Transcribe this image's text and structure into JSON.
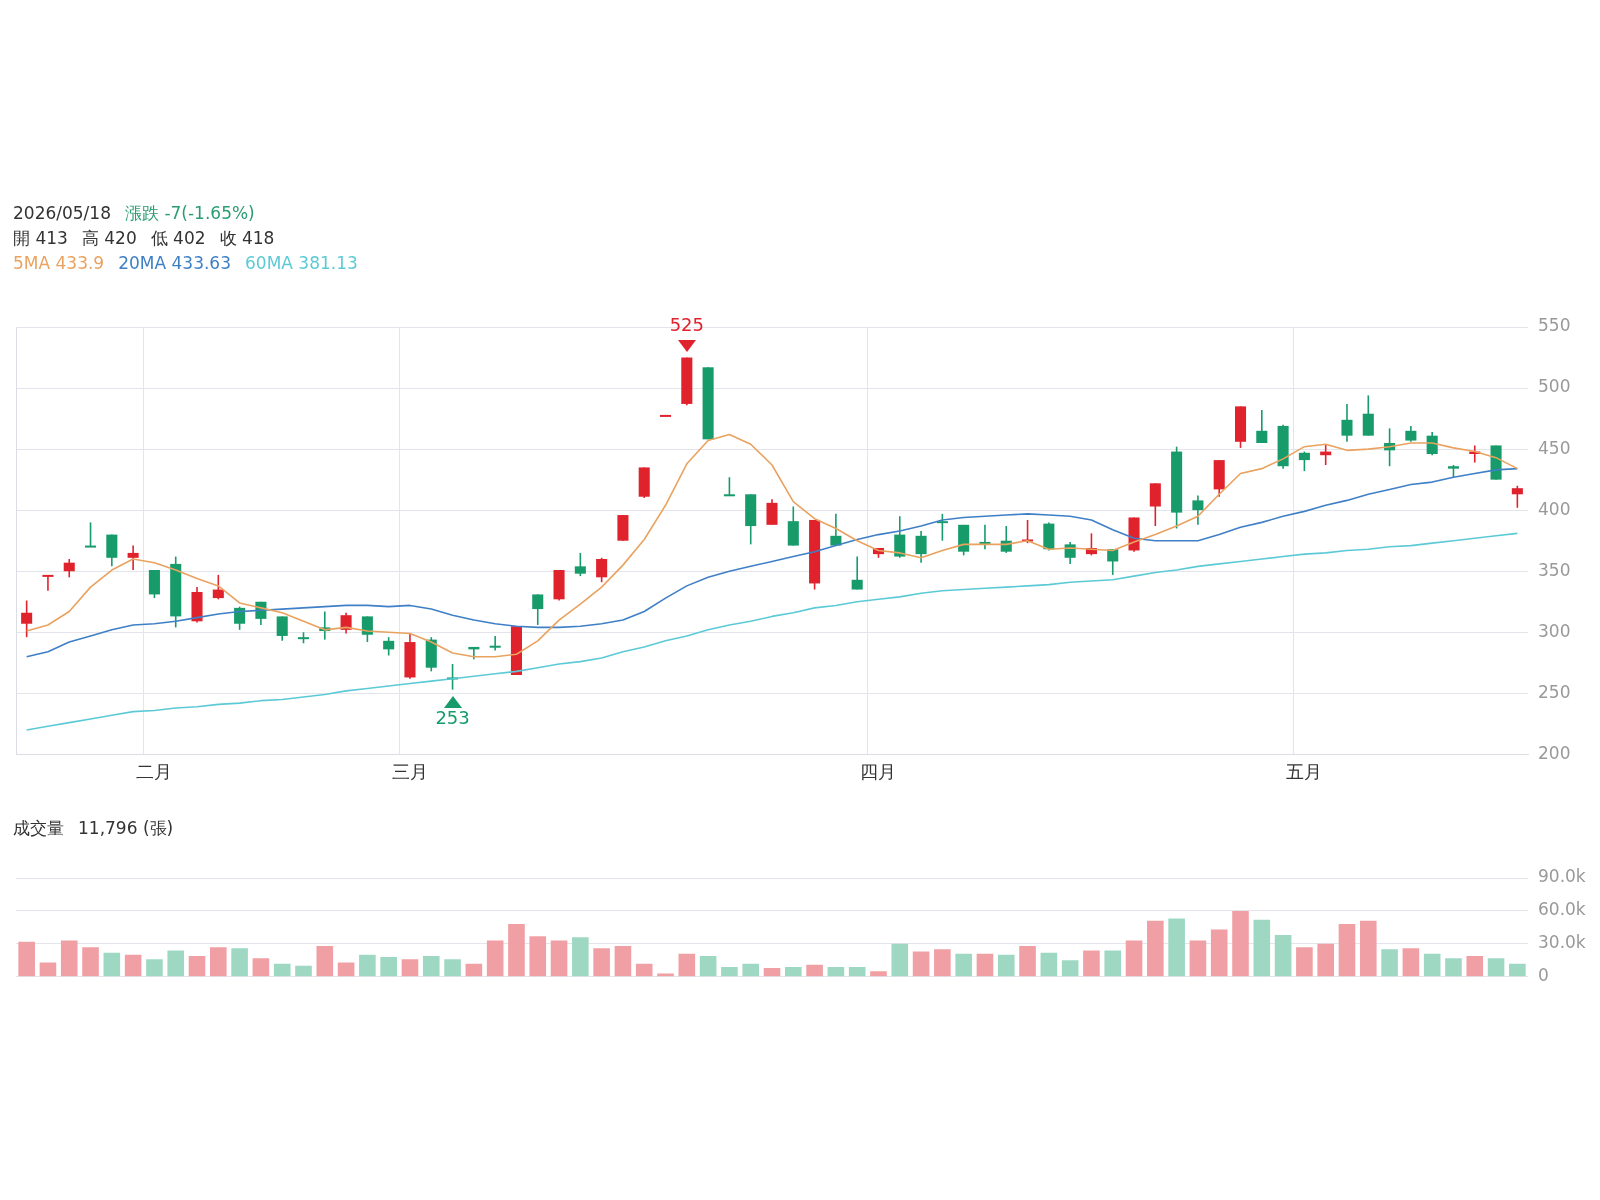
{
  "chart_data": [
    {
      "type": "candlestick",
      "annotations": [
        "2026/05/18",
        "漲跌 -7(-1.65%)",
        "開 413",
        "高 420",
        "低 402",
        "收 418",
        {
          "text": "525",
          "y": 525
        },
        {
          "text": "253",
          "y": 253
        }
      ],
      "categories": [
        null,
        null,
        null,
        null,
        null,
        null,
        "二月",
        null,
        null,
        null,
        null,
        null,
        null,
        null,
        null,
        null,
        null,
        null,
        "三月",
        null,
        null,
        null,
        null,
        null,
        null,
        null,
        null,
        null,
        null,
        null,
        null,
        null,
        null,
        null,
        null,
        null,
        null,
        null,
        null,
        null,
        "四月",
        null,
        null,
        null,
        null,
        null,
        null,
        null,
        null,
        null,
        null,
        null,
        null,
        null,
        null,
        null,
        null,
        null,
        null,
        null,
        "五月",
        null,
        null,
        null,
        null,
        null,
        null,
        null,
        null,
        null,
        null
      ],
      "ohlc": [
        [
          307,
          326,
          296,
          316
        ],
        [
          346,
          347,
          334,
          347
        ],
        [
          350,
          360,
          345,
          357
        ],
        [
          371,
          390,
          370,
          370
        ],
        [
          380,
          380,
          354,
          361
        ],
        [
          361,
          371,
          351,
          365
        ],
        [
          351,
          351,
          328,
          331
        ],
        [
          356,
          362,
          304,
          313
        ],
        [
          309,
          337,
          308,
          333
        ],
        [
          328,
          347,
          327,
          335
        ],
        [
          320,
          321,
          302,
          307
        ],
        [
          325,
          325,
          306,
          311
        ],
        [
          313,
          313,
          293,
          297
        ],
        [
          296,
          300,
          291,
          295
        ],
        [
          304,
          317,
          294,
          301
        ],
        [
          302,
          316,
          299,
          314
        ],
        [
          313,
          313,
          292,
          298
        ],
        [
          293,
          296,
          281,
          286
        ],
        [
          263,
          299,
          262,
          292
        ],
        [
          294,
          296,
          268,
          271
        ],
        [
          263,
          274,
          253,
          262
        ],
        [
          288,
          288,
          278,
          286
        ],
        [
          289,
          297,
          285,
          288
        ],
        [
          265,
          305,
          265,
          305
        ],
        [
          331,
          331,
          306,
          319
        ],
        [
          327,
          351,
          326,
          351
        ],
        [
          354,
          365,
          346,
          348
        ],
        [
          345,
          361,
          341,
          360
        ],
        [
          375,
          396,
          375,
          396
        ],
        [
          411,
          435,
          410,
          435
        ],
        [
          477,
          478,
          477,
          478
        ],
        [
          487,
          525,
          486,
          525
        ],
        [
          517,
          517,
          458,
          458
        ],
        [
          413,
          427,
          412,
          412
        ],
        [
          413,
          413,
          372,
          387
        ],
        [
          388,
          409,
          388,
          406
        ],
        [
          391,
          403,
          371,
          371
        ],
        [
          340,
          392,
          335,
          392
        ],
        [
          379,
          397,
          371,
          371
        ],
        [
          343,
          362,
          335,
          335
        ],
        [
          364,
          369,
          361,
          369
        ],
        [
          380,
          395,
          361,
          362
        ],
        [
          379,
          383,
          357,
          364
        ],
        [
          391,
          397,
          375,
          390
        ],
        [
          388,
          388,
          363,
          366
        ],
        [
          374,
          388,
          368,
          373
        ],
        [
          375,
          387,
          365,
          366
        ],
        [
          375,
          392,
          373,
          376
        ],
        [
          389,
          390,
          367,
          368
        ],
        [
          372,
          374,
          356,
          361
        ],
        [
          364,
          381,
          363,
          369
        ],
        [
          368,
          368,
          347,
          358
        ],
        [
          367,
          394,
          366,
          394
        ],
        [
          403,
          422,
          387,
          422
        ],
        [
          448,
          452,
          385,
          398
        ],
        [
          408,
          412,
          388,
          400
        ],
        [
          417,
          441,
          411,
          441
        ],
        [
          456,
          485,
          451,
          485
        ],
        [
          465,
          482,
          455,
          455
        ],
        [
          469,
          470,
          434,
          436
        ],
        [
          447,
          448,
          432,
          441
        ],
        [
          445,
          454,
          437,
          448
        ],
        [
          474,
          487,
          456,
          461
        ],
        [
          479,
          494,
          461,
          461
        ],
        [
          455,
          467,
          436,
          449
        ],
        [
          465,
          469,
          456,
          457
        ],
        [
          461,
          464,
          445,
          446
        ],
        [
          436,
          437,
          427,
          434
        ],
        [
          446,
          453,
          439,
          448
        ],
        [
          453,
          453,
          425,
          425
        ],
        [
          413,
          420,
          402,
          418
        ]
      ],
      "colors": [
        "#e0222d",
        "#e0222d",
        "#e0222d",
        "#179b6b",
        "#179b6b",
        "#e0222d",
        "#179b6b",
        "#179b6b",
        "#e0222d",
        "#e0222d",
        "#179b6b",
        "#179b6b",
        "#179b6b",
        "#179b6b",
        "#179b6b",
        "#e0222d",
        "#179b6b",
        "#179b6b",
        "#e0222d",
        "#179b6b",
        "#179b6b",
        "#179b6b",
        "#179b6b",
        "#e0222d",
        "#179b6b",
        "#e0222d",
        "#179b6b",
        "#e0222d",
        "#e0222d",
        "#e0222d",
        "#e0222d",
        "#e0222d",
        "#179b6b",
        "#179b6b",
        "#179b6b",
        "#e0222d",
        "#179b6b",
        "#e0222d",
        "#179b6b",
        "#179b6b",
        "#e0222d",
        "#179b6b",
        "#179b6b",
        "#179b6b",
        "#179b6b",
        "#179b6b",
        "#179b6b",
        "#e0222d",
        "#179b6b",
        "#179b6b",
        "#e0222d",
        "#179b6b",
        "#e0222d",
        "#e0222d",
        "#179b6b",
        "#179b6b",
        "#e0222d",
        "#e0222d",
        "#179b6b",
        "#179b6b",
        "#179b6b",
        "#e0222d",
        "#179b6b",
        "#179b6b",
        "#179b6b",
        "#179b6b",
        "#179b6b",
        "#179b6b",
        "#e0222d",
        "#179b6b",
        "#e0222d"
      ],
      "series": [
        {
          "name": "5MA 433.9",
          "type": "line",
          "color": "#e9a25f",
          "values": [
            301,
            306,
            317,
            337,
            351,
            360,
            357,
            351,
            344,
            338,
            324,
            320,
            316,
            309,
            302,
            304,
            301,
            300,
            299,
            292,
            283,
            280,
            280,
            282,
            293,
            310,
            323,
            337,
            355,
            376,
            404,
            438,
            457,
            462,
            454,
            437,
            407,
            393,
            385,
            375,
            367,
            365,
            361,
            367,
            372,
            372,
            372,
            375,
            368,
            369,
            368,
            367,
            374,
            380,
            387,
            395,
            413,
            430,
            434,
            442,
            452,
            454,
            449,
            450,
            452,
            455,
            455,
            451,
            448,
            443,
            434
          ]
        },
        {
          "name": "20MA 433.63",
          "type": "line",
          "color": "#3f7fc6",
          "values": [
            280,
            284,
            292,
            297,
            302,
            306,
            307,
            309,
            312,
            315,
            317,
            318,
            319,
            320,
            321,
            322,
            322,
            321,
            322,
            319,
            314,
            310,
            307,
            305,
            304,
            304,
            305,
            307,
            310,
            317,
            328,
            338,
            345,
            350,
            354,
            358,
            362,
            366,
            371,
            376,
            380,
            383,
            387,
            392,
            394,
            395,
            396,
            397,
            396,
            395,
            392,
            384,
            377,
            375,
            375,
            375,
            380,
            386,
            390,
            395,
            399,
            404,
            408,
            413,
            417,
            421,
            423,
            427,
            430,
            433,
            434
          ]
        },
        {
          "name": "60MA 381.13",
          "type": "line",
          "color": "#5ccad6",
          "values": [
            220,
            223,
            226,
            229,
            232,
            235,
            236,
            238,
            239,
            241,
            242,
            244,
            245,
            247,
            249,
            252,
            254,
            256,
            258,
            260,
            262,
            264,
            266,
            268,
            271,
            274,
            276,
            279,
            284,
            288,
            293,
            297,
            302,
            306,
            309,
            313,
            316,
            320,
            322,
            325,
            327,
            329,
            332,
            334,
            335,
            336,
            337,
            338,
            339,
            341,
            342,
            343,
            346,
            349,
            351,
            354,
            356,
            358,
            360,
            362,
            364,
            365,
            367,
            368,
            370,
            371,
            373,
            375,
            377,
            379,
            381
          ]
        }
      ],
      "ylim": [
        200,
        550
      ],
      "yticks": [
        200,
        250,
        300,
        350,
        400,
        450,
        500,
        550
      ],
      "grid": true,
      "legend": "top left"
    },
    {
      "type": "bar",
      "title": "成交量",
      "subtitle": "11,796 (張)",
      "categories": [
        null,
        null,
        null,
        null,
        null,
        null,
        null,
        null,
        null,
        null,
        null,
        null,
        null,
        null,
        null,
        null,
        null,
        null,
        null,
        null,
        null,
        null,
        null,
        null,
        null,
        null,
        null,
        null,
        null,
        null,
        null,
        null,
        null,
        null,
        null,
        null,
        null,
        null,
        null,
        null,
        null,
        null,
        null,
        null,
        null,
        null,
        null,
        null,
        null,
        null,
        null,
        null,
        null,
        null,
        null,
        null,
        null,
        null,
        null,
        null,
        null,
        null,
        null,
        null,
        null,
        null,
        null,
        null,
        null,
        null,
        null
      ],
      "values": [
        32000,
        13000,
        33000,
        27000,
        22000,
        20000,
        16000,
        24000,
        19000,
        27000,
        26000,
        17000,
        12000,
        10000,
        28000,
        13000,
        20000,
        18000,
        16000,
        19000,
        16000,
        12000,
        33000,
        48000,
        37000,
        33000,
        36000,
        26000,
        28000,
        12000,
        3000,
        21000,
        19000,
        9000,
        12000,
        8000,
        9000,
        11000,
        9000,
        9000,
        5000,
        30000,
        23000,
        25000,
        21000,
        21000,
        20000,
        28000,
        22000,
        15000,
        24000,
        24000,
        33000,
        51000,
        53000,
        33000,
        43000,
        60000,
        52000,
        38000,
        27000,
        30000,
        48000,
        51000,
        25000,
        26000,
        21000,
        17000,
        19000,
        17000,
        12000
      ],
      "colors": [
        "#f0a0a4",
        "#f0a0a4",
        "#f0a0a4",
        "#f0a0a4",
        "#9ed8c2",
        "#f0a0a4",
        "#9ed8c2",
        "#9ed8c2",
        "#f0a0a4",
        "#f0a0a4",
        "#9ed8c2",
        "#f0a0a4",
        "#9ed8c2",
        "#9ed8c2",
        "#f0a0a4",
        "#f0a0a4",
        "#9ed8c2",
        "#9ed8c2",
        "#f0a0a4",
        "#9ed8c2",
        "#9ed8c2",
        "#f0a0a4",
        "#f0a0a4",
        "#f0a0a4",
        "#f0a0a4",
        "#f0a0a4",
        "#9ed8c2",
        "#f0a0a4",
        "#f0a0a4",
        "#f0a0a4",
        "#f0a0a4",
        "#f0a0a4",
        "#9ed8c2",
        "#9ed8c2",
        "#9ed8c2",
        "#f0a0a4",
        "#9ed8c2",
        "#f0a0a4",
        "#9ed8c2",
        "#9ed8c2",
        "#f0a0a4",
        "#9ed8c2",
        "#f0a0a4",
        "#f0a0a4",
        "#9ed8c2",
        "#f0a0a4",
        "#9ed8c2",
        "#f0a0a4",
        "#9ed8c2",
        "#9ed8c2",
        "#f0a0a4",
        "#9ed8c2",
        "#f0a0a4",
        "#f0a0a4",
        "#9ed8c2",
        "#f0a0a4",
        "#f0a0a4",
        "#f0a0a4",
        "#9ed8c2",
        "#9ed8c2",
        "#f0a0a4",
        "#f0a0a4",
        "#f0a0a4",
        "#f0a0a4",
        "#9ed8c2",
        "#f0a0a4",
        "#9ed8c2",
        "#9ed8c2",
        "#f0a0a4",
        "#9ed8c2",
        "#9ed8c2"
      ],
      "ylim": [
        0,
        90000
      ],
      "yticks": [
        0,
        {
          "value": 30000,
          "label": "30.0k"
        },
        {
          "value": 60000,
          "label": "60.0k"
        },
        {
          "value": 90000,
          "label": "90.0k"
        }
      ],
      "grid": "y",
      "tick_labels": "y"
    }
  ]
}
